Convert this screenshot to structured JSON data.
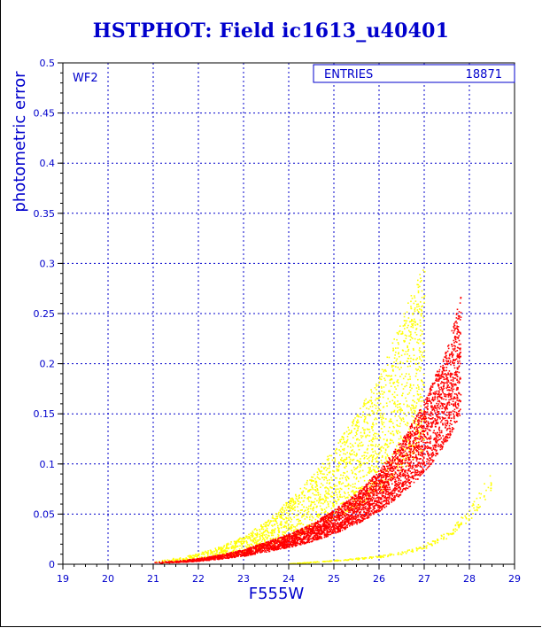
{
  "chart_data": {
    "type": "scatter",
    "title": "HSTPHOT: Field ic1613_u40401",
    "xlabel": "F555W",
    "ylabel": "photometric error",
    "xlim": [
      19,
      29
    ],
    "ylim": [
      0,
      0.5
    ],
    "x_ticks": [
      "19",
      "20",
      "21",
      "22",
      "23",
      "24",
      "25",
      "26",
      "27",
      "28",
      "29"
    ],
    "y_ticks": [
      "0",
      "0.05",
      "0.1",
      "0.15",
      "0.2",
      "0.25",
      "0.3",
      "0.35",
      "0.4",
      "0.45",
      "0.5"
    ],
    "grid": true,
    "panel_label": "WF2",
    "stats_box": {
      "label": "ENTRIES",
      "value": "18871"
    },
    "series": [
      {
        "color": "#ffff00",
        "x": [
          21.0,
          21.5,
          22.0,
          22.5,
          23.0,
          23.5,
          24.0,
          24.5,
          25.0,
          25.5,
          26.0,
          26.5,
          27.0
        ],
        "y": [
          0.003,
          0.005,
          0.008,
          0.013,
          0.02,
          0.03,
          0.045,
          0.062,
          0.08,
          0.105,
          0.13,
          0.17,
          0.21
        ]
      },
      {
        "color": "#ff0000",
        "x": [
          21.0,
          21.5,
          22.0,
          22.5,
          23.0,
          23.5,
          24.0,
          24.5,
          25.0,
          25.5,
          26.0,
          26.5,
          27.0,
          27.5,
          27.8
        ],
        "y": [
          0.002,
          0.003,
          0.005,
          0.008,
          0.012,
          0.018,
          0.024,
          0.032,
          0.043,
          0.056,
          0.074,
          0.098,
          0.128,
          0.17,
          0.21
        ]
      },
      {
        "color": "#ffff00",
        "x": [
          24.0,
          25.0,
          26.0,
          26.5,
          27.0,
          27.5,
          28.0,
          28.5
        ],
        "y": [
          0.001,
          0.004,
          0.008,
          0.012,
          0.018,
          0.03,
          0.05,
          0.085
        ]
      }
    ],
    "colors": {
      "axis": "#0000cc",
      "grid": "#0000cc",
      "title": "#0000cc",
      "frame": "#000000"
    }
  }
}
